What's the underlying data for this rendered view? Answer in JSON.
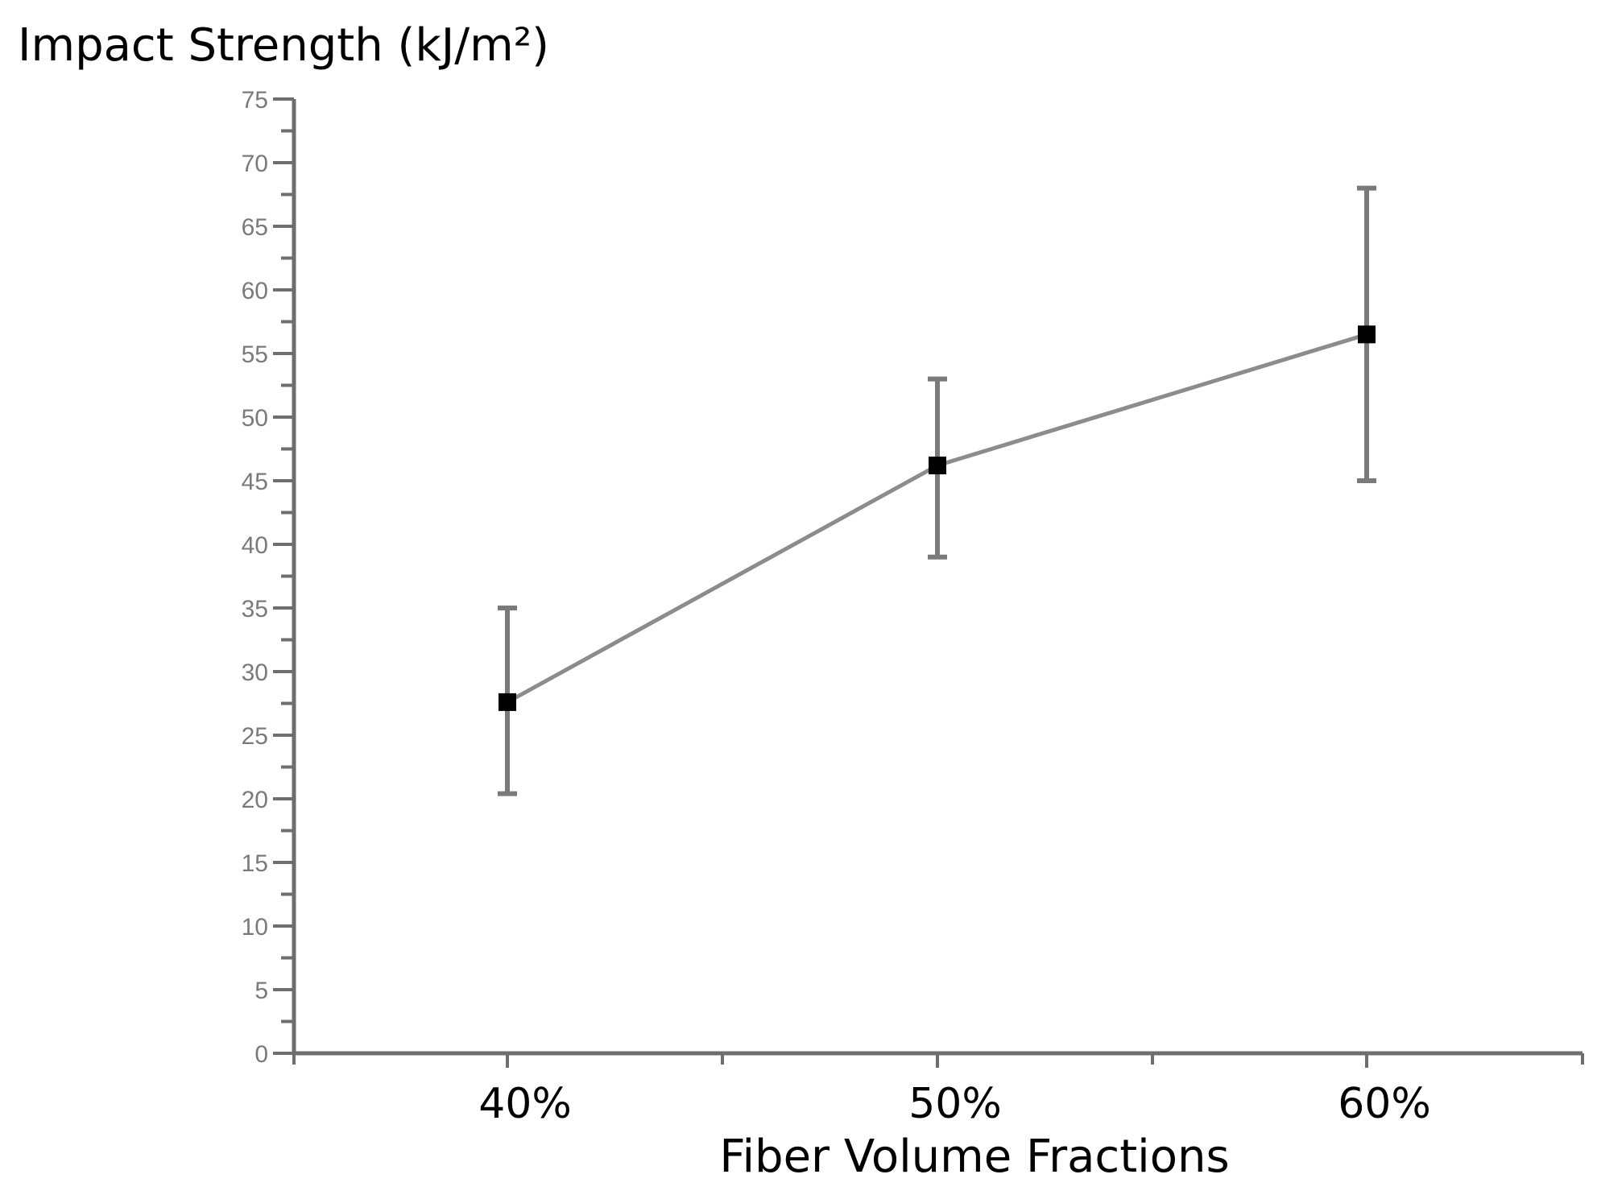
{
  "chart_data": {
    "type": "line",
    "title": "",
    "ylabel": "Impact Strength (kJ/m²)",
    "xlabel": "Fiber Volume Fractions",
    "categories": [
      "40%",
      "50%",
      "60%"
    ],
    "ylim": [
      0,
      75
    ],
    "yticks": [
      0,
      5,
      10,
      15,
      20,
      25,
      30,
      35,
      40,
      45,
      50,
      55,
      60,
      65,
      70,
      75
    ],
    "series": [
      {
        "name": "Impact Strength",
        "values": [
          27.6,
          46.2,
          56.5
        ],
        "error_low": [
          20.4,
          39.0,
          45.0
        ],
        "error_high": [
          35.0,
          53.0,
          68.0
        ]
      }
    ],
    "grid": false,
    "legend": "none"
  }
}
